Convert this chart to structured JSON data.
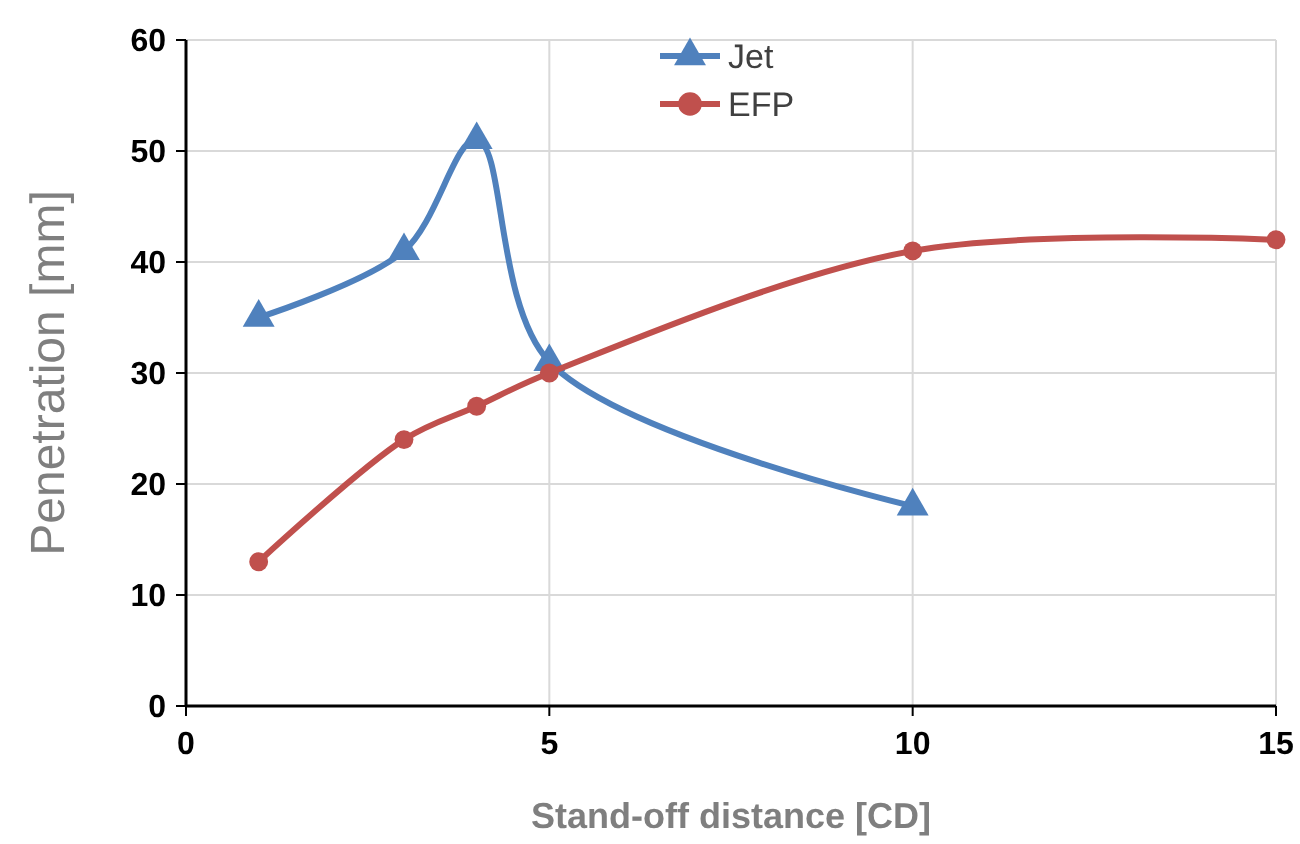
{
  "chart_data": {
    "type": "line",
    "xlabel": "Stand-off distance [CD]",
    "ylabel": "Penetration [mm]",
    "xlim": [
      0,
      15
    ],
    "xticks": [
      0,
      5,
      10,
      15
    ],
    "ylim": [
      0,
      60
    ],
    "yticks": [
      0,
      10,
      20,
      30,
      40,
      50,
      60
    ],
    "grid": true,
    "legend": "top",
    "series": [
      {
        "name": "Jet",
        "color": "#4f81bd",
        "marker": "triangle",
        "x": [
          1,
          3,
          4,
          5,
          10
        ],
        "values": [
          35,
          41,
          51,
          31,
          18
        ]
      },
      {
        "name": "EFP",
        "color": "#c0504d",
        "marker": "circle",
        "x": [
          1,
          3,
          4,
          5,
          10,
          15
        ],
        "values": [
          13,
          24,
          27,
          30,
          41,
          42
        ]
      }
    ]
  }
}
